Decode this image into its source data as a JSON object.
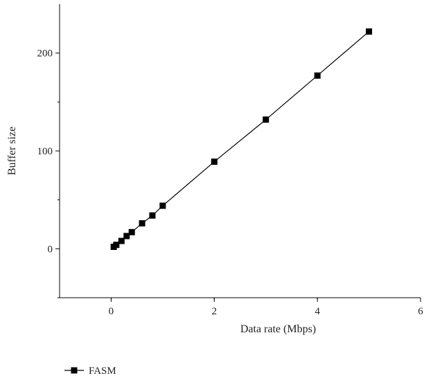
{
  "chart_data": {
    "type": "line",
    "xlabel": "Data rate (Mbps)",
    "ylabel": "Buffer size",
    "xlim": [
      -1,
      6
    ],
    "ylim": [
      -50,
      250
    ],
    "xticks": [
      0,
      2,
      4,
      6
    ],
    "yticks": [
      0,
      100,
      200
    ],
    "grid": false,
    "legend_position": "bottom-left",
    "series": [
      {
        "name": "FASM",
        "marker": "square",
        "color": "#000000",
        "x": [
          0.05,
          0.1,
          0.2,
          0.3,
          0.4,
          0.6,
          0.8,
          1,
          2,
          3,
          4,
          5
        ],
        "y": [
          2,
          4,
          8,
          13,
          17,
          26,
          34,
          44,
          89,
          132,
          177,
          222
        ]
      }
    ]
  }
}
